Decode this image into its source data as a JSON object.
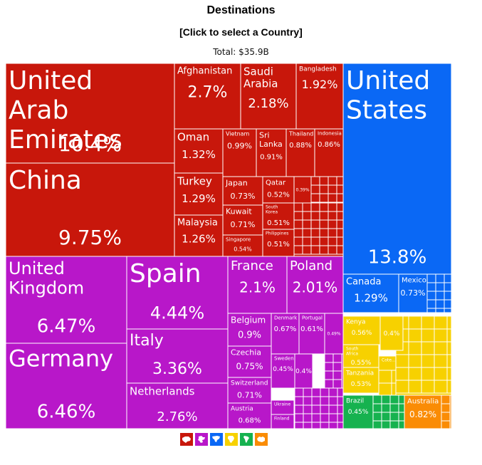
{
  "header": {
    "title": "Destinations",
    "subtitle": "[Click to select a Country]",
    "total": "Total: $35.9B"
  },
  "colors": {
    "asia": "#c8170b",
    "europe": "#b817c9",
    "north_america": "#0a68f5",
    "africa": "#f7d100",
    "south_america": "#16b24f",
    "oceania": "#fa8c05"
  },
  "legend": [
    {
      "region": "asia",
      "icon": "asia-icon",
      "color": "#c8170b"
    },
    {
      "region": "europe",
      "icon": "europe-icon",
      "color": "#b817c9"
    },
    {
      "region": "north_america",
      "icon": "north-america-icon",
      "color": "#0a68f5"
    },
    {
      "region": "africa",
      "icon": "africa-icon",
      "color": "#f7d100"
    },
    {
      "region": "south_america",
      "icon": "south-america-icon",
      "color": "#16b24f"
    },
    {
      "region": "oceania",
      "icon": "oceania-icon",
      "color": "#fa8c05"
    }
  ],
  "chart_data": {
    "type": "treemap",
    "title": "Destinations",
    "subtitle": "[Click to select a Country]",
    "total": "Total: $35.9B",
    "unit": "% of total",
    "tiles": [
      {
        "name": "United Arab Emirates",
        "value": 10.4,
        "label": "10.4%",
        "region": "asia"
      },
      {
        "name": "China",
        "value": 9.75,
        "label": "9.75%",
        "region": "asia"
      },
      {
        "name": "Afghanistan",
        "value": 2.7,
        "label": "2.7%",
        "region": "asia"
      },
      {
        "name": "Saudi Arabia",
        "value": 2.18,
        "label": "2.18%",
        "region": "asia"
      },
      {
        "name": "Bangladesh",
        "value": 1.92,
        "label": "1.92%",
        "region": "asia"
      },
      {
        "name": "Oman",
        "value": 1.32,
        "label": "1.32%",
        "region": "asia"
      },
      {
        "name": "Turkey",
        "value": 1.29,
        "label": "1.29%",
        "region": "asia"
      },
      {
        "name": "Malaysia",
        "value": 1.26,
        "label": "1.26%",
        "region": "asia"
      },
      {
        "name": "Vietnam",
        "value": 0.99,
        "label": "0.99%",
        "region": "asia"
      },
      {
        "name": "Sri Lanka",
        "value": 0.91,
        "label": "0.91%",
        "region": "asia"
      },
      {
        "name": "Thailand",
        "value": 0.88,
        "label": "0.88%",
        "region": "asia"
      },
      {
        "name": "Indonesia",
        "value": 0.86,
        "label": "0.86%",
        "region": "asia"
      },
      {
        "name": "Japan",
        "value": 0.73,
        "label": "0.73%",
        "region": "asia"
      },
      {
        "name": "Qatar",
        "value": 0.52,
        "label": "0.52%",
        "region": "asia"
      },
      {
        "name": "",
        "value": 0.39,
        "label": "0.39%",
        "region": "asia"
      },
      {
        "name": "Kuwait",
        "value": 0.71,
        "label": "0.71%",
        "region": "asia"
      },
      {
        "name": "South Korea",
        "value": 0.51,
        "label": "0.51%",
        "region": "asia"
      },
      {
        "name": "Singapore",
        "value": 0.54,
        "label": "0.54%",
        "region": "asia"
      },
      {
        "name": "Philippines",
        "value": 0.51,
        "label": "0.51%",
        "region": "asia"
      },
      {
        "name": "United States",
        "value": 13.8,
        "label": "13.8%",
        "region": "north_america"
      },
      {
        "name": "Canada",
        "value": 1.29,
        "label": "1.29%",
        "region": "north_america"
      },
      {
        "name": "Mexico",
        "value": 0.73,
        "label": "0.73%",
        "region": "north_america"
      },
      {
        "name": "United Kingdom",
        "value": 6.47,
        "label": "6.47%",
        "region": "europe"
      },
      {
        "name": "Germany",
        "value": 6.46,
        "label": "6.46%",
        "region": "europe"
      },
      {
        "name": "Spain",
        "value": 4.44,
        "label": "4.44%",
        "region": "europe"
      },
      {
        "name": "Italy",
        "value": 3.36,
        "label": "3.36%",
        "region": "europe"
      },
      {
        "name": "Netherlands",
        "value": 2.76,
        "label": "2.76%",
        "region": "europe"
      },
      {
        "name": "France",
        "value": 2.1,
        "label": "2.1%",
        "region": "europe"
      },
      {
        "name": "Poland",
        "value": 2.01,
        "label": "2.01%",
        "region": "europe"
      },
      {
        "name": "Belgium",
        "value": 0.9,
        "label": "0.9%",
        "region": "europe"
      },
      {
        "name": "Denmark",
        "value": 0.67,
        "label": "0.67%",
        "region": "europe"
      },
      {
        "name": "Portugal",
        "value": 0.61,
        "label": "0.61%",
        "region": "europe"
      },
      {
        "name": "",
        "value": 0.49,
        "label": "0.49%",
        "region": "europe"
      },
      {
        "name": "Czechia",
        "value": 0.75,
        "label": "0.75%",
        "region": "europe"
      },
      {
        "name": "Switzerland",
        "value": 0.71,
        "label": "0.71%",
        "region": "europe"
      },
      {
        "name": "Austria",
        "value": 0.68,
        "label": "0.68%",
        "region": "europe"
      },
      {
        "name": "Sweden",
        "value": 0.45,
        "label": "0.45%",
        "region": "europe"
      },
      {
        "name": "",
        "value": 0.4,
        "label": "0.4%",
        "region": "europe"
      },
      {
        "name": "Ukraine",
        "value": null,
        "label": "",
        "region": "europe"
      },
      {
        "name": "Finland",
        "value": null,
        "label": "",
        "region": "europe"
      },
      {
        "name": "Kenya",
        "value": 0.56,
        "label": "0.56%",
        "region": "africa"
      },
      {
        "name": "",
        "value": 0.4,
        "label": "0.4%",
        "region": "africa"
      },
      {
        "name": "South Africa",
        "value": 0.55,
        "label": "0.55%",
        "region": "africa"
      },
      {
        "name": "Cote...",
        "value": null,
        "label": "",
        "region": "africa"
      },
      {
        "name": "Tanzania",
        "value": 0.53,
        "label": "0.53%",
        "region": "africa"
      },
      {
        "name": "Brazil",
        "value": 0.45,
        "label": "0.45%",
        "region": "south_america"
      },
      {
        "name": "Australia",
        "value": 0.82,
        "label": "0.82%",
        "region": "oceania"
      }
    ]
  }
}
